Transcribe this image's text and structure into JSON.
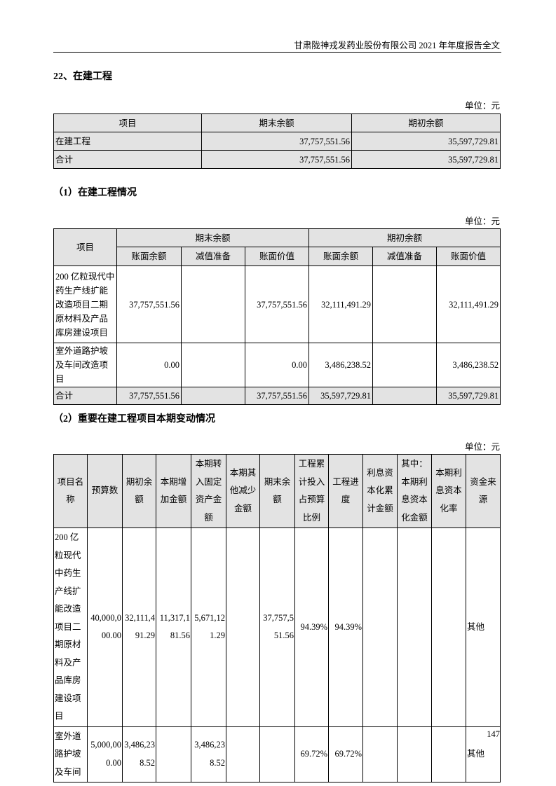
{
  "header": "甘肃陇神戎发药业股份有限公司 2021 年年度报告全文",
  "section_title": "22、在建工程",
  "unit": "单位：元",
  "table1": {
    "headers": [
      "项目",
      "期末余额",
      "期初余额"
    ],
    "rows": [
      [
        "在建工程",
        "37,757,551.56",
        "35,597,729.81"
      ],
      [
        "合计",
        "37,757,551.56",
        "35,597,729.81"
      ]
    ]
  },
  "sub1_title": "（1）在建工程情况",
  "table2": {
    "col_project": "项目",
    "group_end": "期末余额",
    "group_begin": "期初余额",
    "subheaders": [
      "账面余额",
      "减值准备",
      "账面价值",
      "账面余额",
      "减值准备",
      "账面价值"
    ],
    "rows": [
      [
        "200 亿粒现代中药生产线扩能改造项目二期原材料及产品库房建设项目",
        "37,757,551.56",
        "",
        "37,757,551.56",
        "32,111,491.29",
        "",
        "32,111,491.29"
      ],
      [
        "室外道路护坡及车间改造项目",
        "0.00",
        "",
        "0.00",
        "3,486,238.52",
        "",
        "3,486,238.52"
      ],
      [
        "合计",
        "37,757,551.56",
        "",
        "37,757,551.56",
        "35,597,729.81",
        "",
        "35,597,729.81"
      ]
    ]
  },
  "sub2_title": "（2）重要在建工程项目本期变动情况",
  "table3": {
    "headers": [
      "项目名称",
      "预算数",
      "期初余额",
      "本期增加金额",
      "本期转入固定资产金额",
      "本期其他减少金额",
      "期末余额",
      "工程累计投入占预算比例",
      "工程进度",
      "利息资本化累计金额",
      "其中：本期利息资本化金额",
      "本期利息资本化率",
      "资金来源"
    ],
    "rows": [
      [
        "200 亿粒现代中药生产线扩能改造项目二期原材料及产品库房建设项目",
        "40,000,000.00",
        "32,111,491.29",
        "11,317,181.56",
        "5,671,121.29",
        "",
        "37,757,551.56",
        "94.39%",
        "94.39%",
        "",
        "",
        "",
        "其他"
      ],
      [
        "室外道路护坡及车间",
        "5,000,000.00",
        "3,486,238.52",
        "",
        "3,486,238.52",
        "",
        "",
        "69.72%",
        "69.72%",
        "",
        "",
        "",
        "其他"
      ]
    ]
  },
  "page_number": "147"
}
